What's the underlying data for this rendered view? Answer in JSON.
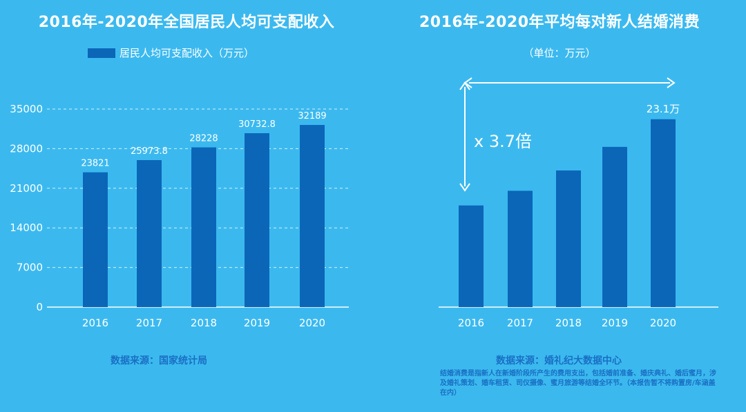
{
  "left": {
    "title": "2016年-2020年全国居民人均可支配收入",
    "legend": "居民人均可支配收入（万元）",
    "source": "数据来源：国家统计局"
  },
  "right": {
    "title": "2016年-2020年平均每对新人结婚消费",
    "unit": "（单位：万元）",
    "multiplier": "x 3.7倍",
    "source": "数据来源：婚礼纪大数据中心",
    "note": "结婚消费是指新人在新婚阶段所产生的费用支出，包括婚前准备、婚庆典礼、婚后蜜月，涉及婚礼策划、婚车租赁、司仪摄像、蜜月旅游等结婚全环节。（本报告暂不将购置房/车涵盖在内）"
  },
  "colors": {
    "bar": "#0b66b8",
    "background": "#3bb9ef",
    "text": "#ffffff",
    "source": "#1a6fc4"
  },
  "chart_data": [
    {
      "type": "bar",
      "title": "2016年-2020年全国居民人均可支配收入",
      "categories": [
        "2016",
        "2017",
        "2018",
        "2019",
        "2020"
      ],
      "values": [
        23821,
        25973.8,
        28228,
        30732.8,
        32189
      ],
      "data_labels": [
        "23821",
        "25973.8",
        "28228",
        "30732.8",
        "32189"
      ],
      "yticks": [
        0,
        7000,
        14000,
        21000,
        28000,
        35000
      ],
      "ylim": [
        0,
        35000
      ],
      "grid": true,
      "legend": "居民人均可支配收入（万元）"
    },
    {
      "type": "bar",
      "title": "2016年-2020年平均每对新人结婚消费",
      "categories": [
        "2016",
        "2017",
        "2018",
        "2019",
        "2020"
      ],
      "values": [
        12.5,
        14.3,
        16.8,
        19.7,
        23.1
      ],
      "data_labels": [
        "",
        "",
        "",
        "",
        "23.1万"
      ],
      "ylim": [
        0,
        28
      ],
      "grid": false,
      "unit": "万元"
    }
  ]
}
